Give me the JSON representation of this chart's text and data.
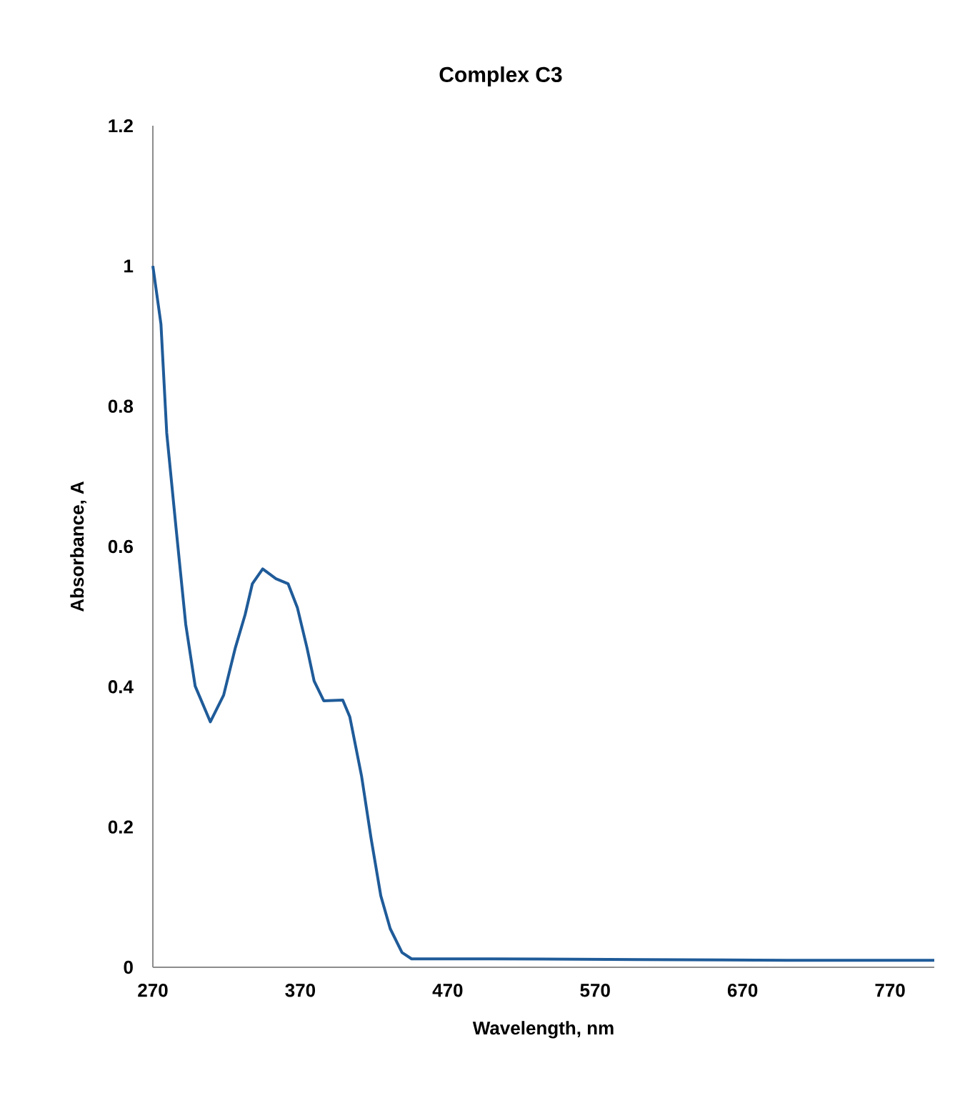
{
  "chart_data": {
    "type": "line",
    "title": "Complex C3",
    "xlabel": "Wavelength, nm",
    "ylabel": "Absorbance, A",
    "xlim": [
      270,
      800
    ],
    "xticks": [
      270,
      370,
      470,
      570,
      670,
      770
    ],
    "ylim": [
      0,
      1.2
    ],
    "yticks": [
      0,
      0.2,
      0.4,
      0.6,
      0.8,
      1,
      1.2
    ],
    "grid": false,
    "marker": "none",
    "line_style": "solid",
    "series": [
      {
        "color": "#1f5b99",
        "x": [
          270,
          275.5,
          279.4,
          285.8,
          292.3,
          298.7,
          309,
          318,
          326,
          332.6,
          337.5,
          344.5,
          353.5,
          361.7,
          368,
          374.5,
          379.4,
          385.9,
          398.8,
          403.6,
          411.6,
          418,
          424.6,
          431,
          439,
          445.5,
          500,
          600,
          700,
          800
        ],
        "values": [
          1.0,
          0.917,
          0.762,
          0.625,
          0.489,
          0.401,
          0.35,
          0.388,
          0.456,
          0.503,
          0.547,
          0.568,
          0.554,
          0.547,
          0.513,
          0.456,
          0.408,
          0.38,
          0.381,
          0.357,
          0.272,
          0.184,
          0.102,
          0.055,
          0.021,
          0.012,
          0.012,
          0.011,
          0.01,
          0.01
        ]
      }
    ]
  }
}
